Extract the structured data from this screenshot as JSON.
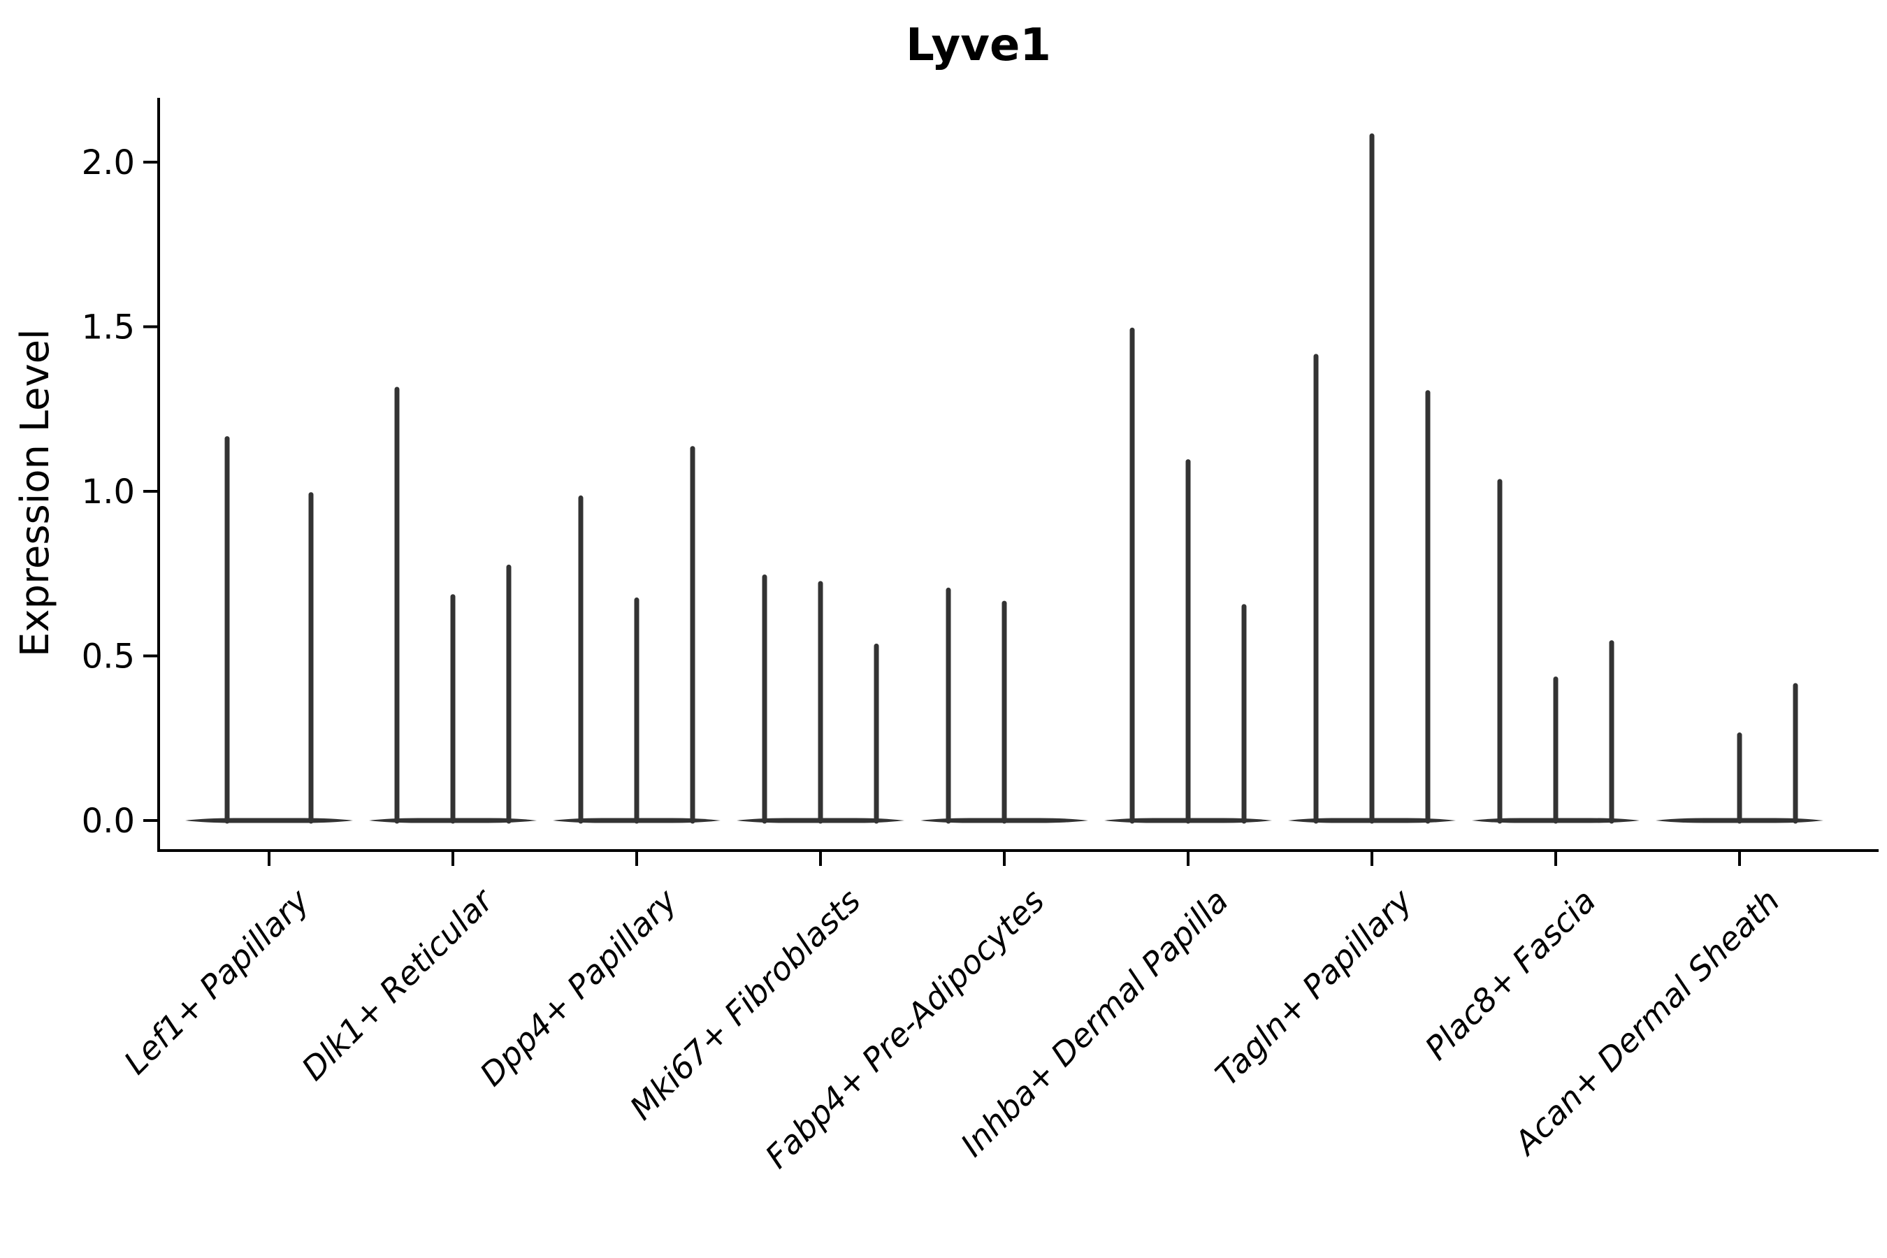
{
  "figure": {
    "background_color": "#ffffff",
    "text_color": "#000000",
    "violin_color": "#333333",
    "axis_color": "#000000"
  },
  "chart_data": {
    "type": "violin",
    "title": "Lyve1",
    "xlabel": "",
    "ylabel": "Expression Level",
    "grid": false,
    "legend": null,
    "ylim": [
      -0.09,
      2.2
    ],
    "yticks": [
      0.0,
      0.5,
      1.0,
      1.5,
      2.0
    ],
    "ytick_labels": [
      "0.0",
      "0.5",
      "1.0",
      "1.5",
      "2.0"
    ],
    "categories": [
      "Lef1+ Papillary",
      "Dlk1+ Reticular",
      "Dpp4+ Papillary",
      "Mki67+ Fibroblasts",
      "Fabp4+ Pre-Adipocytes",
      "Inhba+ Dermal Papilla",
      "Tagln+ Papillary",
      "Plac8+ Fascia",
      "Acan+ Dermal Sheath"
    ],
    "violin_description": "Each category holds narrow needle violins; bodies are flat at expression 0 and each violin rises as a thin spike to its maximum expression value. 0 means a fully flat violin with no spike.",
    "violin_values": [
      [
        1.16,
        0.99
      ],
      [
        1.31,
        0.68,
        0.77
      ],
      [
        0.98,
        0.67,
        1.13
      ],
      [
        0.74,
        0.72,
        0.53
      ],
      [
        0.7,
        0.66,
        0
      ],
      [
        1.49,
        1.09,
        0.65
      ],
      [
        1.41,
        2.08,
        1.3
      ],
      [
        1.03,
        0.43,
        0.54
      ],
      [
        0,
        0.26,
        0.41
      ]
    ]
  }
}
